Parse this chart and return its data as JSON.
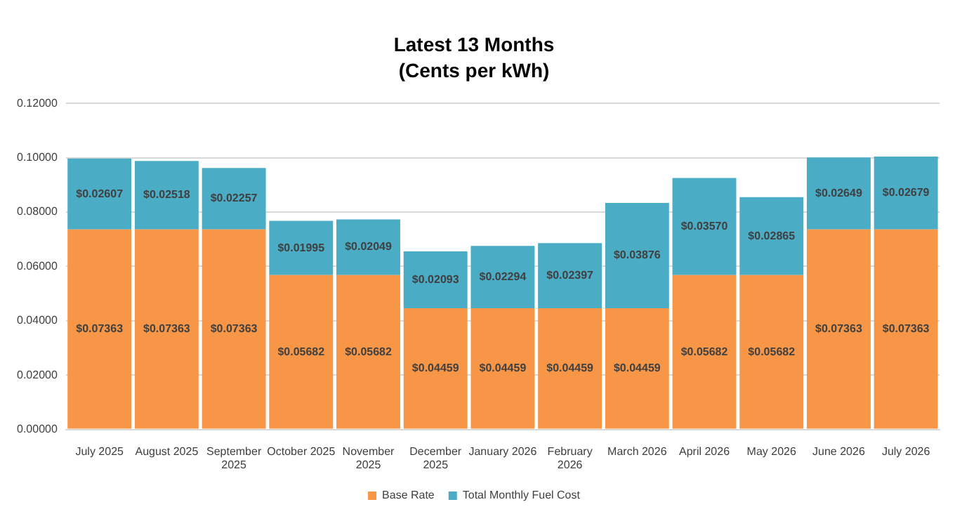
{
  "chart_data": {
    "type": "bar",
    "title": "Latest 13 Months",
    "subtitle": "(Cents per kWh)",
    "stacked": true,
    "legend": "bottom",
    "grid": "y",
    "categories": [
      "July 2025",
      "August 2025",
      "September 2025",
      "October 2025",
      "November 2025",
      "December 2025",
      "January 2026",
      "February 2026",
      "March 2026",
      "April 2026",
      "May 2026",
      "June 2026",
      "July 2026"
    ],
    "ylim": [
      0,
      0.12
    ],
    "yticks": [
      {
        "value": 0,
        "label": "0.00000"
      },
      {
        "value": 0.02,
        "label": "0.02000"
      },
      {
        "value": 0.04,
        "label": "0.04000"
      },
      {
        "value": 0.06,
        "label": "0.06000"
      },
      {
        "value": 0.08,
        "label": "0.08000"
      },
      {
        "value": 0.1,
        "label": "0.10000"
      },
      {
        "value": 0.12,
        "label": "0.12000"
      }
    ],
    "series": [
      {
        "name": "Base Rate",
        "color": "#f79646",
        "values": [
          0.07363,
          0.07363,
          0.07363,
          0.05682,
          0.05682,
          0.04459,
          0.04459,
          0.04459,
          0.04459,
          0.05682,
          0.05682,
          0.07363,
          0.07363
        ],
        "value_labels": [
          "$0.07363",
          "$0.07363",
          "$0.07363",
          "$0.05682",
          "$0.05682",
          "$0.04459",
          "$0.04459",
          "$0.04459",
          "$0.04459",
          "$0.05682",
          "$0.05682",
          "$0.07363",
          "$0.07363"
        ]
      },
      {
        "name": "Total Monthly Fuel Cost",
        "color": "#4bacc6",
        "values": [
          0.02607,
          0.02518,
          0.02257,
          0.01995,
          0.02049,
          0.02093,
          0.02294,
          0.02397,
          0.03876,
          0.0357,
          0.02865,
          0.02649,
          0.02679
        ],
        "value_labels": [
          "$0.02607",
          "$0.02518",
          "$0.02257",
          "$0.01995",
          "$0.02049",
          "$0.02093",
          "$0.02294",
          "$0.02397",
          "$0.03876",
          "$0.03570",
          "$0.02865",
          "$0.02649",
          "$0.02679"
        ]
      }
    ]
  }
}
